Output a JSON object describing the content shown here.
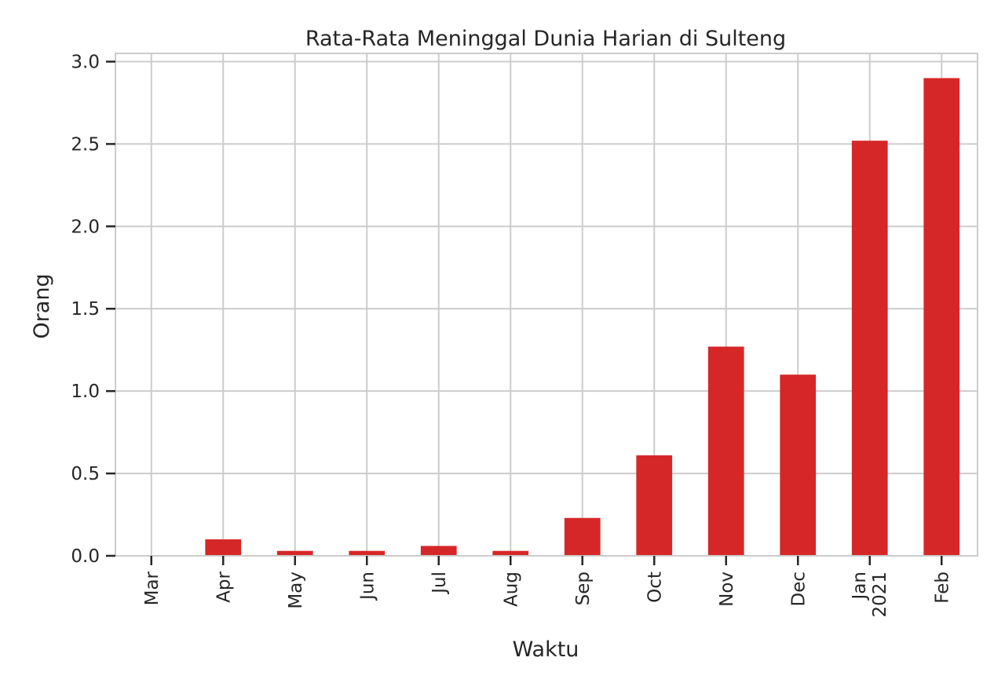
{
  "chart_data": {
    "type": "bar",
    "title": "Rata-Rata Meninggal Dunia Harian di Sulteng",
    "xlabel": "Waktu",
    "ylabel": "Orang",
    "categories": [
      "Mar",
      "Apr",
      "May",
      "Jun",
      "Jul",
      "Aug",
      "Sep",
      "Oct",
      "Nov",
      "Dec",
      "Jan",
      "Feb"
    ],
    "category_sublabels": [
      "",
      "",
      "",
      "",
      "",
      "",
      "",
      "",
      "",
      "",
      "2021",
      ""
    ],
    "values": [
      0.0,
      0.1,
      0.03,
      0.03,
      0.06,
      0.03,
      0.23,
      0.61,
      1.27,
      1.1,
      2.52,
      2.9
    ],
    "ylim": [
      0,
      3.05
    ],
    "yticks": [
      0.0,
      0.5,
      1.0,
      1.5,
      2.0,
      2.5,
      3.0
    ],
    "ytick_labels": [
      "0.0",
      "0.5",
      "1.0",
      "1.5",
      "2.0",
      "2.5",
      "3.0"
    ],
    "grid": true,
    "bar_color": "#d62728",
    "grid_color": "#cccccc",
    "axis_color": "#cccccc",
    "text_color": "#262626"
  }
}
